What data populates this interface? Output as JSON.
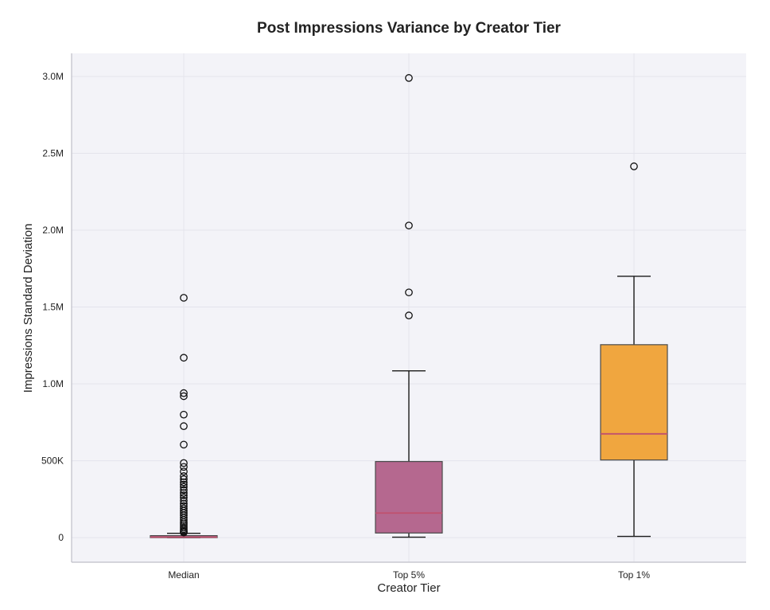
{
  "chart_data": {
    "type": "box",
    "title": "Post Impressions Variance by Creator Tier",
    "xlabel": "Creator Tier",
    "ylabel": "Impressions Standard Deviation",
    "categories": [
      "Median",
      "Top 5%",
      "Top 1%"
    ],
    "ylim": [
      -160000,
      3150000
    ],
    "yticks": [
      {
        "value": 0,
        "label": "0"
      },
      {
        "value": 500000,
        "label": "500K"
      },
      {
        "value": 1000000,
        "label": "1.0M"
      },
      {
        "value": 1500000,
        "label": "1.5M"
      },
      {
        "value": 2000000,
        "label": "2.0M"
      },
      {
        "value": 2500000,
        "label": "2.5M"
      },
      {
        "value": 3000000,
        "label": "3.0M"
      }
    ],
    "grid": true,
    "boxes": [
      {
        "category": "Median",
        "whisker_low": 0,
        "q1": 0,
        "median": 3000,
        "q3": 12000,
        "whisker_high": 28000,
        "color": "#b5688f",
        "outliers": [
          1560000,
          1170000,
          940000,
          920000,
          800000,
          725000,
          605000,
          485000,
          460000,
          430000,
          400000,
          380000,
          360000,
          345000,
          330000,
          310000,
          290000,
          275000,
          260000,
          240000,
          220000,
          205000,
          190000,
          175000,
          160000,
          145000,
          130000,
          115000,
          100000,
          88000,
          76000,
          65000,
          55000,
          45000,
          38000,
          33000
        ]
      },
      {
        "category": "Top 5%",
        "whisker_low": 3000,
        "q1": 30000,
        "median": 160000,
        "q3": 495000,
        "whisker_high": 1085000,
        "color": "#b5688f",
        "outliers": [
          2990000,
          2030000,
          1595000,
          1445000
        ]
      },
      {
        "category": "Top 1%",
        "whisker_low": 8000,
        "q1": 505000,
        "median": 675000,
        "q3": 1255000,
        "whisker_high": 1700000,
        "color": "#f0a63f",
        "outliers": [
          2415000
        ]
      }
    ],
    "colors": {
      "plot_background": "#f3f3f8",
      "grid": "#e4e4ec",
      "median_line": "#c0506e",
      "box_edge": "#4a4a4a"
    }
  }
}
